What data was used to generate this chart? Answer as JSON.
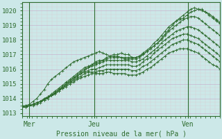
{
  "title": "Pression niveau de la mer( hPa )",
  "bg_color": "#cce8e8",
  "line_color": "#2d6b2d",
  "axis_color": "#2d6b2d",
  "tick_color": "#2d6b2d",
  "ylim": [
    1012.8,
    1020.6
  ],
  "xlim": [
    0,
    55
  ],
  "yticks": [
    1013,
    1014,
    1015,
    1016,
    1017,
    1018,
    1019,
    1020
  ],
  "xtick_labels": [
    "Mer",
    "Jeu",
    "Ven"
  ],
  "xtick_pos": [
    2,
    20,
    46
  ],
  "vline_pos": [
    2,
    20,
    46
  ],
  "series": [
    [
      1013.4,
      1013.5,
      1013.5,
      1013.6,
      1013.7,
      1013.8,
      1013.9,
      1014.0,
      1014.2,
      1014.3,
      1014.5,
      1014.7,
      1014.9,
      1015.1,
      1015.3,
      1015.5,
      1015.7,
      1015.9,
      1016.1,
      1016.3,
      1016.5,
      1016.6,
      1016.6,
      1016.8,
      1016.9,
      1017.0,
      1017.0,
      1017.1,
      1017.0,
      1017.0,
      1016.8,
      1016.8,
      1016.9,
      1017.1,
      1017.3,
      1017.5,
      1017.8,
      1018.0,
      1018.3,
      1018.6,
      1018.9,
      1019.1,
      1019.3,
      1019.5,
      1019.7,
      1019.9,
      1020.1,
      1020.2,
      1020.1,
      1020.0,
      1019.9,
      1019.7,
      1019.5,
      1019.3,
      1019.1
    ],
    [
      1013.4,
      1013.5,
      1013.5,
      1013.6,
      1013.7,
      1013.8,
      1014.0,
      1014.1,
      1014.3,
      1014.5,
      1014.7,
      1014.9,
      1015.1,
      1015.3,
      1015.5,
      1015.7,
      1015.9,
      1016.1,
      1016.2,
      1016.3,
      1016.4,
      1016.5,
      1016.6,
      1016.7,
      1016.8,
      1016.9,
      1016.9,
      1016.8,
      1016.7,
      1016.7,
      1016.7,
      1016.7,
      1016.8,
      1017.0,
      1017.2,
      1017.4,
      1017.6,
      1017.8,
      1018.0,
      1018.3,
      1018.6,
      1018.8,
      1019.0,
      1019.2,
      1019.4,
      1019.5,
      1019.6,
      1019.6,
      1019.5,
      1019.3,
      1019.1,
      1018.9,
      1018.7,
      1018.5,
      1018.3
    ],
    [
      1013.4,
      1013.4,
      1013.5,
      1013.6,
      1013.7,
      1013.8,
      1013.9,
      1014.1,
      1014.2,
      1014.4,
      1014.6,
      1014.8,
      1015.0,
      1015.2,
      1015.4,
      1015.6,
      1015.8,
      1016.0,
      1016.1,
      1016.2,
      1016.3,
      1016.4,
      1016.5,
      1016.6,
      1016.6,
      1016.6,
      1016.6,
      1016.6,
      1016.6,
      1016.6,
      1016.5,
      1016.5,
      1016.6,
      1016.7,
      1016.9,
      1017.1,
      1017.3,
      1017.5,
      1017.8,
      1018.0,
      1018.2,
      1018.4,
      1018.6,
      1018.7,
      1018.8,
      1018.9,
      1018.9,
      1018.8,
      1018.7,
      1018.5,
      1018.3,
      1018.1,
      1017.9,
      1017.7,
      1017.5
    ],
    [
      1013.4,
      1013.4,
      1013.5,
      1013.6,
      1013.7,
      1013.8,
      1013.9,
      1014.1,
      1014.2,
      1014.4,
      1014.6,
      1014.8,
      1015.0,
      1015.2,
      1015.4,
      1015.5,
      1015.7,
      1015.8,
      1015.9,
      1016.0,
      1016.0,
      1016.1,
      1016.2,
      1016.3,
      1016.3,
      1016.3,
      1016.3,
      1016.3,
      1016.3,
      1016.3,
      1016.2,
      1016.2,
      1016.3,
      1016.5,
      1016.7,
      1016.8,
      1017.1,
      1017.3,
      1017.5,
      1017.7,
      1017.9,
      1018.1,
      1018.2,
      1018.3,
      1018.4,
      1018.4,
      1018.3,
      1018.2,
      1018.1,
      1017.9,
      1017.7,
      1017.5,
      1017.3,
      1017.1,
      1016.9
    ],
    [
      1013.4,
      1013.4,
      1013.5,
      1013.6,
      1013.7,
      1013.8,
      1013.9,
      1014.1,
      1014.2,
      1014.4,
      1014.6,
      1014.7,
      1014.9,
      1015.1,
      1015.2,
      1015.4,
      1015.5,
      1015.7,
      1015.8,
      1015.8,
      1015.8,
      1015.9,
      1015.9,
      1016.0,
      1016.0,
      1016.0,
      1016.0,
      1016.0,
      1016.0,
      1016.0,
      1015.9,
      1015.9,
      1016.0,
      1016.2,
      1016.3,
      1016.5,
      1016.7,
      1016.9,
      1017.1,
      1017.3,
      1017.5,
      1017.7,
      1017.8,
      1017.9,
      1018.0,
      1018.0,
      1017.9,
      1017.8,
      1017.7,
      1017.5,
      1017.3,
      1017.1,
      1016.9,
      1016.7,
      1016.5
    ],
    [
      1013.4,
      1013.4,
      1013.5,
      1013.5,
      1013.6,
      1013.7,
      1013.9,
      1014.0,
      1014.2,
      1014.3,
      1014.5,
      1014.7,
      1014.8,
      1015.0,
      1015.1,
      1015.3,
      1015.4,
      1015.5,
      1015.6,
      1015.7,
      1015.7,
      1015.7,
      1015.7,
      1015.8,
      1015.8,
      1015.7,
      1015.7,
      1015.7,
      1015.7,
      1015.6,
      1015.6,
      1015.6,
      1015.7,
      1015.8,
      1016.0,
      1016.1,
      1016.3,
      1016.5,
      1016.7,
      1016.9,
      1017.1,
      1017.2,
      1017.3,
      1017.4,
      1017.4,
      1017.4,
      1017.3,
      1017.2,
      1017.1,
      1016.9,
      1016.7,
      1016.5,
      1016.3,
      1016.2,
      1016.0
    ],
    [
      1013.5,
      1013.5,
      1013.6,
      1013.8,
      1014.0,
      1014.3,
      1014.6,
      1015.0,
      1015.3,
      1015.5,
      1015.7,
      1015.9,
      1016.1,
      1016.3,
      1016.5,
      1016.6,
      1016.7,
      1016.8,
      1016.9,
      1017.0,
      1017.1,
      1017.2,
      1017.1,
      1017.0,
      1016.9,
      1016.8,
      1016.8,
      1016.8,
      1016.8,
      1016.8,
      1016.8,
      1016.8,
      1016.9,
      1017.0,
      1017.2,
      1017.4,
      1017.6,
      1017.8,
      1018.1,
      1018.4,
      1018.7,
      1019.0,
      1019.3,
      1019.4,
      1019.5,
      1019.7,
      1019.9,
      1020.0,
      1020.1,
      1020.1,
      1019.9,
      1019.8,
      1019.6,
      1019.4,
      1019.2
    ]
  ]
}
